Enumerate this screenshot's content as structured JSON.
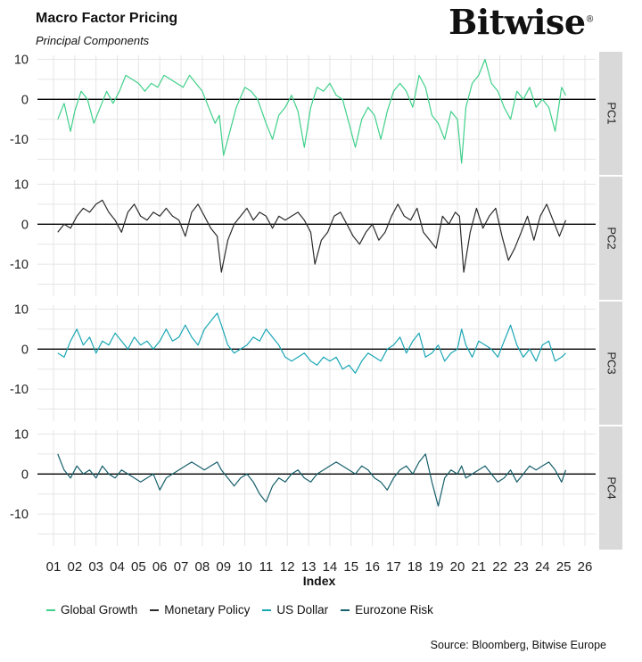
{
  "title": "Macro Factor Pricing",
  "subtitle": "Principal Components",
  "logo": "Bitwise",
  "logo_mark": "®",
  "source": "Source: Bloomberg, Bitwise Europe",
  "colors": {
    "global_growth": "#3fd08a",
    "monetary_policy": "#2b2b2b",
    "us_dollar": "#1aa6b5",
    "eurozone_risk": "#165f6b",
    "panel_strip": "#d9d9d9",
    "grid": "#e5e5e5"
  },
  "chart_data": {
    "type": "line",
    "facet": "rows",
    "xlabel": "Index",
    "x_ticks": [
      "01",
      "02",
      "03",
      "04",
      "05",
      "06",
      "07",
      "08",
      "09",
      "10",
      "11",
      "12",
      "13",
      "14",
      "15",
      "16",
      "17",
      "18",
      "19",
      "20",
      "21",
      "22",
      "23",
      "24",
      "25",
      "26"
    ],
    "xlim": [
      2001,
      2026
    ],
    "ylim": [
      -18,
      11
    ],
    "y_ticks": [
      10,
      0,
      -10
    ],
    "grid": true,
    "legend_position": "bottom",
    "panels": [
      {
        "strip": "PC1",
        "series_name": "Global Growth",
        "color": "#3fd08a",
        "x": [
          2001.2,
          2001.5,
          2001.8,
          2002.0,
          2002.3,
          2002.6,
          2002.9,
          2003.2,
          2003.5,
          2003.8,
          2004.1,
          2004.4,
          2004.7,
          2005.0,
          2005.3,
          2005.6,
          2005.9,
          2006.2,
          2006.5,
          2006.8,
          2007.1,
          2007.4,
          2007.7,
          2008.0,
          2008.3,
          2008.6,
          2008.8,
          2009.0,
          2009.3,
          2009.6,
          2010.0,
          2010.3,
          2010.6,
          2011.0,
          2011.3,
          2011.6,
          2011.9,
          2012.2,
          2012.5,
          2012.8,
          2013.1,
          2013.4,
          2013.7,
          2014.0,
          2014.3,
          2014.6,
          2014.9,
          2015.2,
          2015.5,
          2015.8,
          2016.1,
          2016.4,
          2016.7,
          2017.0,
          2017.3,
          2017.6,
          2017.9,
          2018.2,
          2018.5,
          2018.8,
          2019.1,
          2019.4,
          2019.7,
          2020.0,
          2020.2,
          2020.4,
          2020.7,
          2021.0,
          2021.3,
          2021.6,
          2021.9,
          2022.2,
          2022.5,
          2022.8,
          2023.1,
          2023.4,
          2023.7,
          2024.0,
          2024.3,
          2024.6,
          2024.9,
          2025.1
        ],
        "y": [
          -5,
          -1,
          -8,
          -3,
          2,
          0,
          -6,
          -2,
          2,
          -1,
          2,
          6,
          5,
          4,
          2,
          4,
          3,
          6,
          5,
          4,
          3,
          6,
          4,
          2,
          -2,
          -6,
          -4,
          -14,
          -8,
          -2,
          3,
          2,
          0,
          -6,
          -10,
          -4,
          -2,
          1,
          -3,
          -12,
          -2,
          3,
          2,
          4,
          1,
          0,
          -6,
          -12,
          -5,
          -2,
          -4,
          -10,
          -3,
          2,
          4,
          2,
          -2,
          6,
          3,
          -4,
          -6,
          -10,
          -3,
          -5,
          -16,
          -2,
          4,
          6,
          10,
          4,
          2,
          -2,
          -5,
          2,
          0,
          3,
          -2,
          0,
          -2,
          -8,
          3,
          1
        ]
      },
      {
        "strip": "PC2",
        "series_name": "Monetary Policy",
        "color": "#2b2b2b",
        "x": [
          2001.2,
          2001.5,
          2001.8,
          2002.1,
          2002.4,
          2002.7,
          2003.0,
          2003.3,
          2003.6,
          2003.9,
          2004.2,
          2004.5,
          2004.8,
          2005.1,
          2005.4,
          2005.7,
          2006.0,
          2006.3,
          2006.6,
          2006.9,
          2007.2,
          2007.5,
          2007.8,
          2008.1,
          2008.4,
          2008.7,
          2008.9,
          2009.2,
          2009.5,
          2009.8,
          2010.1,
          2010.4,
          2010.7,
          2011.0,
          2011.3,
          2011.6,
          2011.9,
          2012.2,
          2012.5,
          2012.8,
          2013.1,
          2013.3,
          2013.6,
          2013.9,
          2014.2,
          2014.5,
          2014.8,
          2015.1,
          2015.4,
          2015.7,
          2016.0,
          2016.3,
          2016.6,
          2016.9,
          2017.2,
          2017.5,
          2017.8,
          2018.1,
          2018.4,
          2018.7,
          2019.0,
          2019.3,
          2019.6,
          2019.9,
          2020.1,
          2020.3,
          2020.6,
          2020.9,
          2021.2,
          2021.5,
          2021.8,
          2022.1,
          2022.4,
          2022.7,
          2023.0,
          2023.3,
          2023.6,
          2023.9,
          2024.2,
          2024.5,
          2024.8,
          2025.1
        ],
        "y": [
          -2,
          0,
          -1,
          2,
          4,
          3,
          5,
          6,
          3,
          1,
          -2,
          3,
          5,
          2,
          1,
          3,
          2,
          4,
          2,
          1,
          -3,
          3,
          5,
          2,
          -1,
          -3,
          -12,
          -4,
          0,
          2,
          4,
          1,
          3,
          2,
          -1,
          2,
          1,
          2,
          3,
          1,
          -2,
          -10,
          -4,
          -2,
          2,
          3,
          0,
          -3,
          -5,
          -2,
          0,
          -4,
          -2,
          2,
          5,
          2,
          1,
          4,
          -2,
          -4,
          -6,
          2,
          0,
          3,
          2,
          -12,
          -2,
          4,
          -1,
          2,
          4,
          -3,
          -9,
          -6,
          -2,
          2,
          -4,
          2,
          5,
          1,
          -3,
          1
        ]
      },
      {
        "strip": "PC3",
        "series_name": "US Dollar",
        "color": "#1aa6b5",
        "x": [
          2001.2,
          2001.5,
          2001.8,
          2002.1,
          2002.4,
          2002.7,
          2003.0,
          2003.3,
          2003.6,
          2003.9,
          2004.2,
          2004.5,
          2004.8,
          2005.1,
          2005.4,
          2005.7,
          2006.0,
          2006.3,
          2006.6,
          2006.9,
          2007.2,
          2007.5,
          2007.8,
          2008.1,
          2008.4,
          2008.7,
          2008.9,
          2009.2,
          2009.5,
          2009.8,
          2010.1,
          2010.4,
          2010.7,
          2011.0,
          2011.3,
          2011.6,
          2011.9,
          2012.2,
          2012.5,
          2012.8,
          2013.1,
          2013.4,
          2013.7,
          2014.0,
          2014.3,
          2014.6,
          2014.9,
          2015.2,
          2015.5,
          2015.8,
          2016.1,
          2016.4,
          2016.7,
          2017.0,
          2017.3,
          2017.6,
          2017.9,
          2018.2,
          2018.5,
          2018.8,
          2019.1,
          2019.4,
          2019.7,
          2020.0,
          2020.2,
          2020.4,
          2020.7,
          2021.0,
          2021.3,
          2021.6,
          2021.9,
          2022.2,
          2022.5,
          2022.8,
          2023.1,
          2023.4,
          2023.7,
          2024.0,
          2024.3,
          2024.6,
          2024.9,
          2025.1
        ],
        "y": [
          -1,
          -2,
          2,
          5,
          1,
          3,
          -1,
          2,
          1,
          4,
          2,
          0,
          3,
          1,
          2,
          0,
          2,
          5,
          2,
          3,
          6,
          3,
          1,
          5,
          7,
          9,
          6,
          1,
          -1,
          0,
          1,
          3,
          2,
          5,
          3,
          1,
          -2,
          -3,
          -2,
          -1,
          -3,
          -4,
          -2,
          -3,
          -2,
          -5,
          -4,
          -6,
          -3,
          -1,
          -2,
          -3,
          0,
          1,
          3,
          -1,
          2,
          4,
          -2,
          -1,
          1,
          -3,
          -1,
          0,
          5,
          1,
          -2,
          2,
          1,
          0,
          -2,
          2,
          6,
          1,
          -2,
          0,
          -3,
          1,
          2,
          -3,
          -2,
          -1
        ]
      },
      {
        "strip": "PC4",
        "series_name": "Eurozone Risk",
        "color": "#165f6b",
        "x": [
          2001.2,
          2001.5,
          2001.8,
          2002.1,
          2002.4,
          2002.7,
          2003.0,
          2003.3,
          2003.6,
          2003.9,
          2004.2,
          2004.5,
          2004.8,
          2005.1,
          2005.4,
          2005.7,
          2006.0,
          2006.3,
          2006.6,
          2006.9,
          2007.2,
          2007.5,
          2007.8,
          2008.1,
          2008.4,
          2008.7,
          2008.9,
          2009.2,
          2009.5,
          2009.8,
          2010.1,
          2010.4,
          2010.7,
          2011.0,
          2011.3,
          2011.6,
          2011.9,
          2012.2,
          2012.5,
          2012.8,
          2013.1,
          2013.4,
          2013.7,
          2014.0,
          2014.3,
          2014.6,
          2014.9,
          2015.2,
          2015.5,
          2015.8,
          2016.1,
          2016.4,
          2016.7,
          2017.0,
          2017.3,
          2017.6,
          2017.9,
          2018.2,
          2018.5,
          2018.8,
          2019.1,
          2019.4,
          2019.7,
          2020.0,
          2020.2,
          2020.4,
          2020.7,
          2021.0,
          2021.3,
          2021.6,
          2021.9,
          2022.2,
          2022.5,
          2022.8,
          2023.1,
          2023.4,
          2023.7,
          2024.0,
          2024.3,
          2024.6,
          2024.9,
          2025.1
        ],
        "y": [
          5,
          1,
          -1,
          2,
          0,
          1,
          -1,
          2,
          0,
          -1,
          1,
          0,
          -1,
          -2,
          -1,
          0,
          -4,
          -1,
          0,
          1,
          2,
          3,
          2,
          1,
          2,
          3,
          1,
          -1,
          -3,
          -1,
          0,
          -2,
          -5,
          -7,
          -3,
          -1,
          -2,
          0,
          1,
          -1,
          -2,
          0,
          1,
          2,
          3,
          2,
          1,
          0,
          2,
          1,
          -1,
          -2,
          -4,
          -1,
          1,
          2,
          0,
          3,
          5,
          -2,
          -8,
          -1,
          1,
          0,
          2,
          -1,
          0,
          1,
          2,
          0,
          -2,
          -1,
          1,
          -2,
          0,
          2,
          1,
          2,
          3,
          1,
          -2,
          1
        ]
      }
    ]
  }
}
